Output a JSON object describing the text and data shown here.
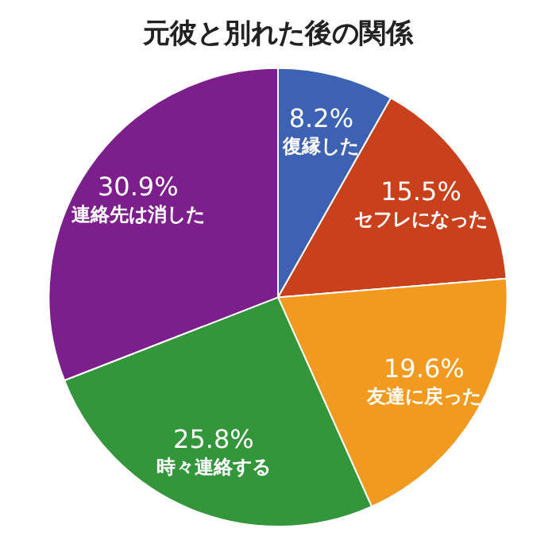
{
  "chart_data": {
    "type": "pie",
    "title": "元彼と別れた後の関係",
    "categories": [
      "復縁した",
      "セフレになった",
      "友達に戻った",
      "時々連絡する",
      "連絡先は消した"
    ],
    "values": [
      8.2,
      15.5,
      19.6,
      25.8,
      30.9
    ],
    "value_labels": [
      "8.2%",
      "15.5%",
      "19.6%",
      "25.8%",
      "30.9%"
    ],
    "colors": [
      "#3d62b3",
      "#c9401c",
      "#f29a1f",
      "#33963a",
      "#7c1f8c"
    ],
    "legend": false
  }
}
